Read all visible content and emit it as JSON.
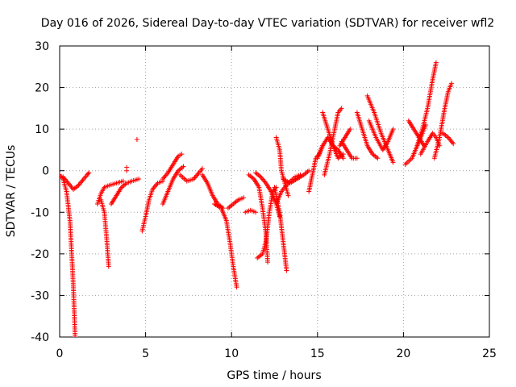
{
  "chart_data": {
    "type": "scatter",
    "title": "Day 016 of 2026, Sidereal Day-to-day VTEC variation (SDTVAR) for receiver wfl2",
    "xlabel": "GPS time / hours",
    "ylabel": "SDTVAR / TECUs",
    "xlim": [
      0,
      25
    ],
    "ylim": [
      -40,
      30
    ],
    "x_ticks": [
      0,
      5,
      10,
      15,
      20,
      25
    ],
    "y_ticks": [
      -40,
      -30,
      -20,
      -10,
      0,
      10,
      20,
      30
    ],
    "x_tick_labels": [
      "0",
      "5",
      "10",
      "15",
      "20",
      "25"
    ],
    "y_tick_labels": [
      "-40",
      "-30",
      "-20",
      "-10",
      "0",
      "10",
      "20",
      "30"
    ],
    "grid": true,
    "legend": "none",
    "marker": "+",
    "series_color": "#ff0000",
    "tracks": [
      [
        [
          0.0,
          -1.0
        ],
        [
          0.2,
          -2.0
        ],
        [
          0.4,
          -5.0
        ],
        [
          0.6,
          -12.0
        ],
        [
          0.7,
          -20.0
        ],
        [
          0.8,
          -28.0
        ],
        [
          0.9,
          -40.0
        ]
      ],
      [
        [
          0.2,
          -1.5
        ],
        [
          0.5,
          -3.0
        ],
        [
          0.8,
          -4.5
        ],
        [
          1.1,
          -3.5
        ],
        [
          1.4,
          -2.0
        ],
        [
          1.6,
          -1.0
        ],
        [
          1.7,
          -0.5
        ]
      ],
      [
        [
          2.2,
          -8.0
        ],
        [
          2.4,
          -5.5
        ],
        [
          2.6,
          -4.0
        ],
        [
          2.9,
          -3.5
        ],
        [
          3.3,
          -3.0
        ],
        [
          3.7,
          -2.5
        ]
      ],
      [
        [
          2.4,
          -7.0
        ],
        [
          2.6,
          -10.0
        ],
        [
          2.75,
          -17.0
        ],
        [
          2.85,
          -23.0
        ]
      ],
      [
        [
          3.0,
          -8.0
        ],
        [
          3.3,
          -6.0
        ],
        [
          3.6,
          -4.0
        ],
        [
          3.9,
          -3.0
        ],
        [
          4.2,
          -2.5
        ],
        [
          4.6,
          -2.0
        ]
      ],
      [
        [
          4.8,
          -14.5
        ],
        [
          5.0,
          -11.0
        ],
        [
          5.2,
          -7.0
        ],
        [
          5.4,
          -4.5
        ],
        [
          5.7,
          -3.0
        ],
        [
          6.0,
          -2.5
        ]
      ],
      [
        [
          6.0,
          -2.0
        ],
        [
          6.3,
          -0.5
        ],
        [
          6.6,
          1.5
        ],
        [
          6.9,
          3.5
        ],
        [
          7.1,
          4.0
        ]
      ],
      [
        [
          6.0,
          -8.0
        ],
        [
          6.3,
          -5.0
        ],
        [
          6.6,
          -2.0
        ],
        [
          6.9,
          0.0
        ],
        [
          7.2,
          1.0
        ]
      ],
      [
        [
          7.0,
          -1.0
        ],
        [
          7.4,
          -2.5
        ],
        [
          7.8,
          -2.0
        ],
        [
          8.1,
          -0.5
        ],
        [
          8.3,
          0.5
        ]
      ],
      [
        [
          8.3,
          -1.0
        ],
        [
          8.6,
          -3.0
        ],
        [
          8.9,
          -6.0
        ],
        [
          9.2,
          -8.0
        ],
        [
          9.5,
          -9.0
        ]
      ],
      [
        [
          9.0,
          -8.0
        ],
        [
          9.4,
          -9.0
        ],
        [
          9.7,
          -12.0
        ],
        [
          9.9,
          -17.0
        ],
        [
          10.1,
          -23.0
        ],
        [
          10.3,
          -28.0
        ]
      ],
      [
        [
          9.8,
          -9.0
        ],
        [
          10.1,
          -8.0
        ],
        [
          10.4,
          -7.0
        ],
        [
          10.7,
          -6.5
        ]
      ],
      [
        [
          10.8,
          -10.0
        ],
        [
          11.1,
          -9.5
        ],
        [
          11.4,
          -10.0
        ]
      ],
      [
        [
          11.0,
          -1.0
        ],
        [
          11.3,
          -2.0
        ],
        [
          11.6,
          -4.0
        ],
        [
          11.8,
          -9.0
        ],
        [
          12.0,
          -15.0
        ],
        [
          12.1,
          -22.0
        ]
      ],
      [
        [
          11.5,
          -21.0
        ],
        [
          11.8,
          -20.0
        ],
        [
          12.0,
          -17.0
        ],
        [
          12.2,
          -10.0
        ],
        [
          12.4,
          -5.0
        ],
        [
          12.6,
          -4.0
        ]
      ],
      [
        [
          11.4,
          -0.5
        ],
        [
          11.7,
          -1.5
        ],
        [
          12.0,
          -3.0
        ],
        [
          12.3,
          -5.0
        ],
        [
          12.6,
          -8.0
        ],
        [
          12.8,
          -11.0
        ]
      ],
      [
        [
          12.5,
          -4.0
        ],
        [
          12.8,
          -10.0
        ],
        [
          13.0,
          -17.0
        ],
        [
          13.2,
          -24.0
        ]
      ],
      [
        [
          12.6,
          -8.0
        ],
        [
          12.9,
          -5.0
        ],
        [
          13.3,
          -3.0
        ],
        [
          13.7,
          -1.5
        ],
        [
          14.0,
          -1.0
        ]
      ],
      [
        [
          12.6,
          8.0
        ],
        [
          12.8,
          5.0
        ],
        [
          12.9,
          0.0
        ],
        [
          13.1,
          -3.0
        ],
        [
          13.3,
          -6.0
        ]
      ],
      [
        [
          13.0,
          -2.0
        ],
        [
          13.4,
          -3.0
        ],
        [
          13.8,
          -2.0
        ],
        [
          14.2,
          -1.0
        ],
        [
          14.5,
          0.0
        ]
      ],
      [
        [
          14.5,
          -5.0
        ],
        [
          14.7,
          -1.0
        ],
        [
          14.9,
          3.0
        ],
        [
          15.1,
          4.0
        ],
        [
          15.3,
          6.0
        ]
      ],
      [
        [
          15.0,
          3.0
        ],
        [
          15.3,
          6.0
        ],
        [
          15.6,
          8.0
        ],
        [
          15.9,
          6.0
        ],
        [
          16.2,
          5.0
        ],
        [
          16.5,
          3.0
        ]
      ],
      [
        [
          15.4,
          -1.0
        ],
        [
          15.7,
          4.0
        ],
        [
          16.0,
          10.0
        ],
        [
          16.2,
          14.0
        ],
        [
          16.4,
          15.0
        ]
      ],
      [
        [
          15.3,
          14.0
        ],
        [
          15.6,
          10.0
        ],
        [
          15.9,
          6.0
        ],
        [
          16.2,
          3.0
        ],
        [
          16.5,
          4.0
        ]
      ],
      [
        [
          16.4,
          7.0
        ],
        [
          16.7,
          5.0
        ],
        [
          17.0,
          3.0
        ],
        [
          17.3,
          3.0
        ]
      ],
      [
        [
          16.9,
          10.0
        ],
        [
          16.6,
          8.0
        ],
        [
          16.3,
          6.0
        ]
      ],
      [
        [
          17.3,
          14.0
        ],
        [
          17.6,
          10.0
        ],
        [
          17.9,
          6.0
        ],
        [
          18.2,
          4.0
        ],
        [
          18.5,
          3.0
        ]
      ],
      [
        [
          17.9,
          18.0
        ],
        [
          18.3,
          14.0
        ],
        [
          18.7,
          9.0
        ],
        [
          19.1,
          5.0
        ],
        [
          19.4,
          2.0
        ]
      ],
      [
        [
          18.0,
          12.0
        ],
        [
          18.4,
          8.0
        ],
        [
          18.8,
          5.0
        ],
        [
          19.1,
          7.0
        ],
        [
          19.4,
          10.0
        ]
      ],
      [
        [
          20.1,
          1.5
        ],
        [
          20.5,
          3.0
        ],
        [
          20.8,
          6.0
        ],
        [
          21.1,
          9.0
        ],
        [
          21.3,
          11.0
        ]
      ],
      [
        [
          20.3,
          12.0
        ],
        [
          20.6,
          10.0
        ],
        [
          20.9,
          8.0
        ],
        [
          21.2,
          6.0
        ]
      ],
      [
        [
          20.8,
          6.0
        ],
        [
          21.1,
          10.0
        ],
        [
          21.4,
          15.0
        ],
        [
          21.7,
          22.0
        ],
        [
          21.9,
          26.0
        ]
      ],
      [
        [
          21.0,
          4.0
        ],
        [
          21.4,
          7.0
        ],
        [
          21.7,
          9.0
        ],
        [
          21.9,
          8.0
        ],
        [
          22.1,
          6.0
        ]
      ],
      [
        [
          21.8,
          3.0
        ],
        [
          22.1,
          8.0
        ],
        [
          22.4,
          15.0
        ],
        [
          22.6,
          19.0
        ],
        [
          22.8,
          21.0
        ]
      ],
      [
        [
          22.3,
          9.0
        ],
        [
          22.6,
          8.0
        ],
        [
          22.9,
          6.5
        ]
      ]
    ],
    "isolated_points": [
      [
        4.5,
        7.5
      ],
      [
        3.9,
        0.8
      ],
      [
        3.9,
        0.0
      ]
    ]
  }
}
